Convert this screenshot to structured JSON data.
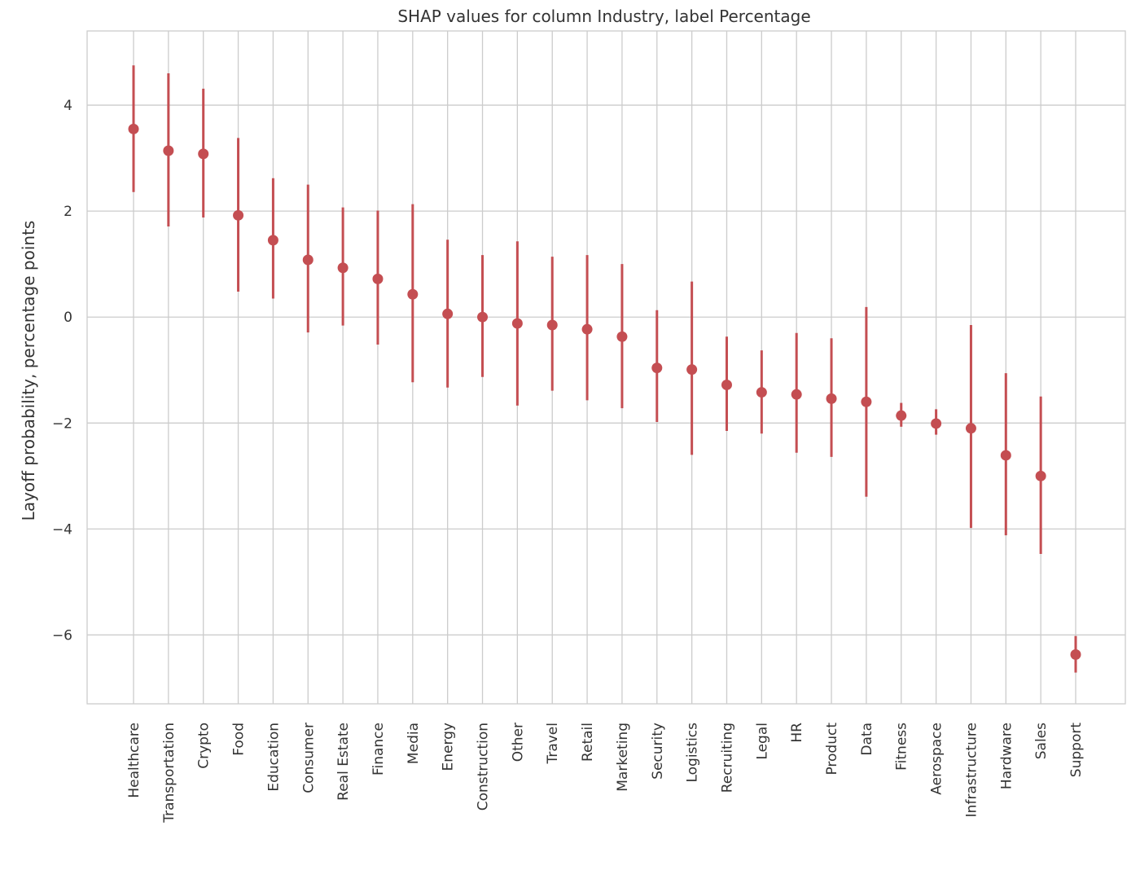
{
  "chart_data": {
    "type": "scatter",
    "title": "SHAP values for column Industry, label Percentage",
    "xlabel": "",
    "ylabel": "Layoff probability, percentage points",
    "ylim": [
      -7.3,
      5.4
    ],
    "yticks": [
      {
        "value": -6,
        "label": "−6"
      },
      {
        "value": -4,
        "label": "−4"
      },
      {
        "value": -2,
        "label": "−2"
      },
      {
        "value": 0,
        "label": "0"
      },
      {
        "value": 2,
        "label": "2"
      },
      {
        "value": 4,
        "label": "4"
      }
    ],
    "grid": true,
    "legend": "none",
    "marker_color": "#c44e52",
    "categories": [
      "Healthcare",
      "Transportation",
      "Crypto",
      "Food",
      "Education",
      "Consumer",
      "Real Estate",
      "Finance",
      "Media",
      "Energy",
      "Construction",
      "Other",
      "Travel",
      "Retail",
      "Marketing",
      "Security",
      "Logistics",
      "Recruiting",
      "Legal",
      "HR",
      "Product",
      "Data",
      "Fitness",
      "Aerospace",
      "Infrastructure",
      "Hardware",
      "Sales",
      "Support"
    ],
    "values": [
      3.55,
      3.14,
      3.08,
      1.92,
      1.45,
      1.08,
      0.93,
      0.72,
      0.43,
      0.06,
      0.0,
      -0.12,
      -0.15,
      -0.23,
      -0.37,
      -0.96,
      -0.99,
      -1.28,
      -1.42,
      -1.46,
      -1.54,
      -1.6,
      -1.86,
      -2.01,
      -2.1,
      -2.61,
      -3.0,
      -6.37
    ],
    "lower": [
      2.36,
      1.71,
      1.88,
      0.48,
      0.35,
      -0.29,
      -0.16,
      -0.52,
      -1.23,
      -1.33,
      -1.13,
      -1.67,
      -1.39,
      -1.57,
      -1.72,
      -1.98,
      -2.6,
      -2.15,
      -2.2,
      -2.56,
      -2.64,
      -3.39,
      -2.07,
      -2.22,
      -3.98,
      -4.12,
      -4.47,
      -6.71
    ],
    "upper": [
      4.75,
      4.6,
      4.31,
      3.38,
      2.62,
      2.5,
      2.07,
      2.01,
      2.13,
      1.46,
      1.17,
      1.43,
      1.14,
      1.17,
      1.0,
      0.13,
      0.67,
      -0.37,
      -0.63,
      -0.3,
      -0.4,
      0.19,
      -1.62,
      -1.74,
      -0.15,
      -1.06,
      -1.5,
      -6.02
    ]
  }
}
